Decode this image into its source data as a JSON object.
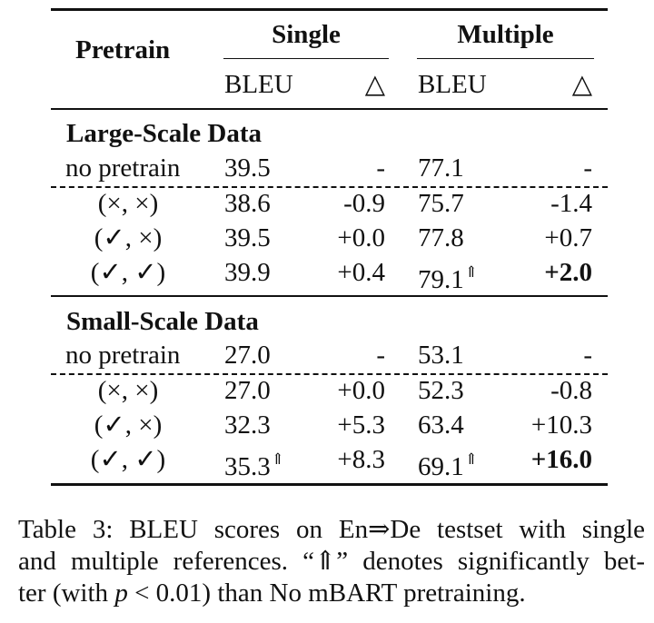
{
  "table": {
    "header": {
      "pretrain": "Pretrain",
      "single": "Single",
      "multiple": "Multiple",
      "bleu": "BLEU",
      "delta": "△"
    },
    "sections": [
      {
        "title": "Large-Scale Data",
        "rows": [
          {
            "label": "no pretrain",
            "s_bleu": "39.5",
            "s_sig": "",
            "s_delta": "-",
            "m_bleu": "77.1",
            "m_sig": "",
            "m_delta": "-",
            "m_delta_bold": false
          },
          {
            "label": "(×, ×)",
            "s_bleu": "38.6",
            "s_sig": "",
            "s_delta": "-0.9",
            "m_bleu": "75.7",
            "m_sig": "",
            "m_delta": "-1.4",
            "m_delta_bold": false
          },
          {
            "label": "(✓, ×)",
            "s_bleu": "39.5",
            "s_sig": "",
            "s_delta": "+0.0",
            "m_bleu": "77.8",
            "m_sig": "",
            "m_delta": "+0.7",
            "m_delta_bold": false
          },
          {
            "label": "(✓, ✓)",
            "s_bleu": "39.9",
            "s_sig": "",
            "s_delta": "+0.4",
            "m_bleu": "79.1",
            "m_sig": "⇑",
            "m_delta": "+2.0",
            "m_delta_bold": true
          }
        ]
      },
      {
        "title": "Small-Scale Data",
        "rows": [
          {
            "label": "no pretrain",
            "s_bleu": "27.0",
            "s_sig": "",
            "s_delta": "-",
            "m_bleu": "53.1",
            "m_sig": "",
            "m_delta": "-",
            "m_delta_bold": false
          },
          {
            "label": "(×, ×)",
            "s_bleu": "27.0",
            "s_sig": "",
            "s_delta": "+0.0",
            "m_bleu": "52.3",
            "m_sig": "",
            "m_delta": "-0.8",
            "m_delta_bold": false
          },
          {
            "label": "(✓, ×)",
            "s_bleu": "32.3",
            "s_sig": "",
            "s_delta": "+5.3",
            "m_bleu": "63.4",
            "m_sig": "",
            "m_delta": "+10.3",
            "m_delta_bold": false
          },
          {
            "label": "(✓, ✓)",
            "s_bleu": "35.3",
            "s_sig": "⇑",
            "s_delta": "+8.3",
            "m_bleu": "69.1",
            "m_sig": "⇑",
            "m_delta": "+16.0",
            "m_delta_bold": true
          }
        ]
      }
    ]
  },
  "caption": {
    "line1": "Table 3:  BLEU scores on En⇒De testset with single",
    "line2": "and multiple references. “⇑” denotes significantly bet-",
    "line3_pre": "ter (with ",
    "line3_p": "p",
    "line3_lt": " < 0.01",
    "line3_post": ") than No mBART pretraining."
  }
}
